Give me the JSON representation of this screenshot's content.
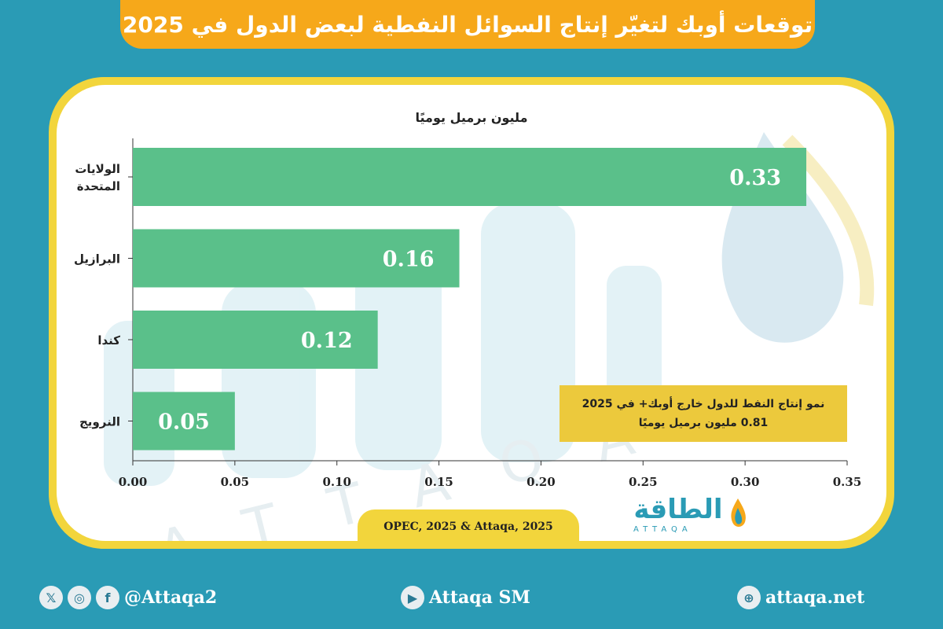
{
  "title": "توقعات أوبك لتغيّر إنتاج السوائل النفطية لبعض الدول في 2025",
  "unit_label": "مليون برميل يوميًا",
  "note": {
    "line1": "نمو إنتاج النفط للدول خارج أوبك+ في 2025",
    "line2": "0.81  مليون برميل يوميًا"
  },
  "source": "OPEC, 2025 & Attaqa, 2025",
  "logo": {
    "text": "الطاقة",
    "sub": "ATTAQA"
  },
  "watermark_letters": "ATTAQA",
  "footer": {
    "social_handle": "@Attaqa2",
    "youtube": "Attaqa SM",
    "website": "attaqa.net",
    "icons": [
      "x-icon",
      "instagram-icon",
      "facebook-icon",
      "youtube-icon",
      "globe-icon"
    ]
  },
  "colors": {
    "background": "#2a9bb5",
    "banner": "#f6a81a",
    "frame": "#f2d53c",
    "bar": "#5ac08a",
    "note_box": "#ecc93c"
  },
  "chart_data": {
    "type": "bar",
    "orientation": "horizontal",
    "categories": [
      "الولايات المتحدة",
      "البرازيل",
      "كندا",
      "النرويج"
    ],
    "category_lines": [
      [
        "الولايات",
        "المتحدة"
      ],
      [
        "البرازيل"
      ],
      [
        "كندا"
      ],
      [
        "النرويج"
      ]
    ],
    "values": [
      0.33,
      0.16,
      0.12,
      0.05
    ],
    "data_labels": [
      "0.33",
      "0.16",
      "0.12",
      "0.05"
    ],
    "xlim": [
      0,
      0.35
    ],
    "xticks": [
      "0.00",
      "0.05",
      "0.10",
      "0.15",
      "0.20",
      "0.25",
      "0.30",
      "0.35"
    ],
    "ylabel": "مليون برميل يوميًا",
    "grid": false
  }
}
